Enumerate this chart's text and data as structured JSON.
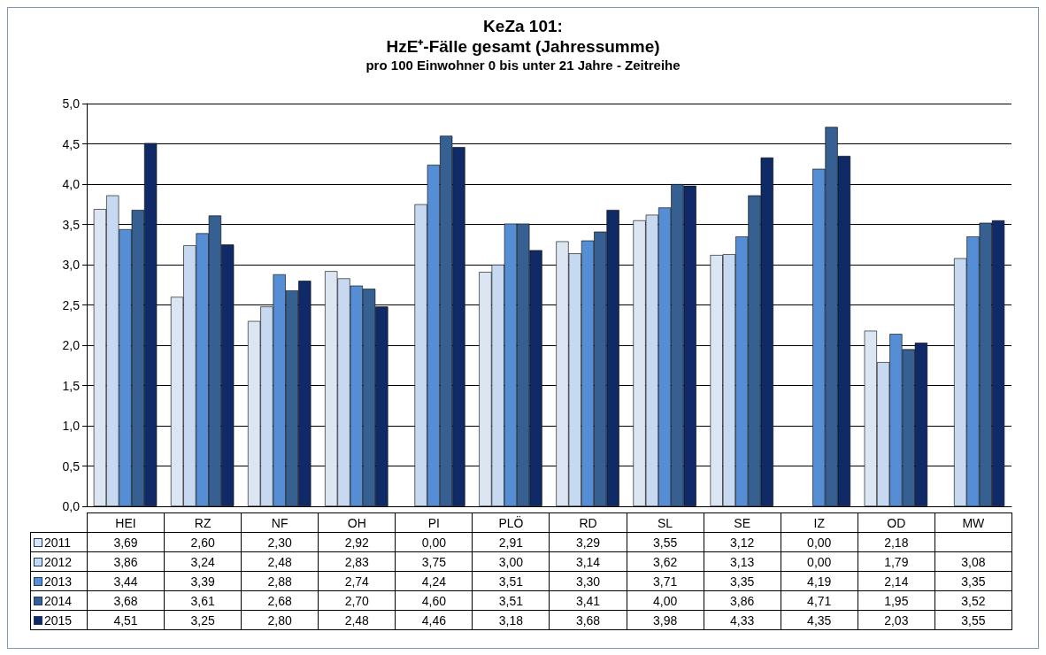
{
  "chart_data": {
    "type": "bar",
    "title": "KeZa 101:\nHzE⁺-Fälle gesamt (Jahressumme)",
    "subtitle": "pro 100 Einwohner 0 bis unter 21 Jahre - Zeitreihe",
    "categories": [
      "HEI",
      "RZ",
      "NF",
      "OH",
      "PI",
      "PLÖ",
      "RD",
      "SL",
      "SE",
      "IZ",
      "OD",
      "MW"
    ],
    "series": [
      {
        "name": "2011",
        "color": "#dce6f2",
        "values": [
          3.69,
          2.6,
          2.3,
          2.92,
          0.0,
          2.91,
          3.29,
          3.55,
          3.12,
          0.0,
          2.18,
          null
        ],
        "value_labels": [
          "3,69",
          "2,60",
          "2,30",
          "2,92",
          "0,00",
          "2,91",
          "3,29",
          "3,55",
          "3,12",
          "0,00",
          "2,18",
          null
        ]
      },
      {
        "name": "2012",
        "color": "#c6d9f1",
        "values": [
          3.86,
          3.24,
          2.48,
          2.83,
          3.75,
          3.0,
          3.14,
          3.62,
          3.13,
          0.0,
          1.79,
          3.08
        ],
        "value_labels": [
          "3,86",
          "3,24",
          "2,48",
          "2,83",
          "3,75",
          "3,00",
          "3,14",
          "3,62",
          "3,13",
          "0,00",
          "1,79",
          "3,08"
        ]
      },
      {
        "name": "2013",
        "color": "#558ed5",
        "values": [
          3.44,
          3.39,
          2.88,
          2.74,
          4.24,
          3.51,
          3.3,
          3.71,
          3.35,
          4.19,
          2.14,
          3.35
        ],
        "value_labels": [
          "3,44",
          "3,39",
          "2,88",
          "2,74",
          "4,24",
          "3,51",
          "3,30",
          "3,71",
          "3,35",
          "4,19",
          "2,14",
          "3,35"
        ]
      },
      {
        "name": "2014",
        "color": "#376092",
        "values": [
          3.68,
          3.61,
          2.68,
          2.7,
          4.6,
          3.51,
          3.41,
          4.0,
          3.86,
          4.71,
          1.95,
          3.52
        ],
        "value_labels": [
          "3,68",
          "3,61",
          "2,68",
          "2,70",
          "4,60",
          "3,51",
          "3,41",
          "4,00",
          "3,86",
          "4,71",
          "1,95",
          "3,52"
        ]
      },
      {
        "name": "2015",
        "color": "#0f2a66",
        "values": [
          4.51,
          3.25,
          2.8,
          2.48,
          4.46,
          3.18,
          3.68,
          3.98,
          4.33,
          4.35,
          2.03,
          3.55
        ],
        "value_labels": [
          "4,51",
          "3,25",
          "2,80",
          "2,48",
          "4,46",
          "3,18",
          "3,68",
          "3,98",
          "4,33",
          "4,35",
          "2,03",
          "3,55"
        ]
      }
    ],
    "ylim": [
      0,
      5
    ],
    "yticks": [
      {
        "value": 0,
        "label": "0,0"
      },
      {
        "value": 0.5,
        "label": "0,5"
      },
      {
        "value": 1,
        "label": "1,0"
      },
      {
        "value": 1.5,
        "label": "1,5"
      },
      {
        "value": 2,
        "label": "2,0"
      },
      {
        "value": 2.5,
        "label": "2,5"
      },
      {
        "value": 3,
        "label": "3,0"
      },
      {
        "value": 3.5,
        "label": "3,5"
      },
      {
        "value": 4,
        "label": "4,0"
      },
      {
        "value": 4.5,
        "label": "4,5"
      },
      {
        "value": 5,
        "label": "5,0"
      }
    ],
    "grid": "y",
    "legend": "bottom"
  }
}
